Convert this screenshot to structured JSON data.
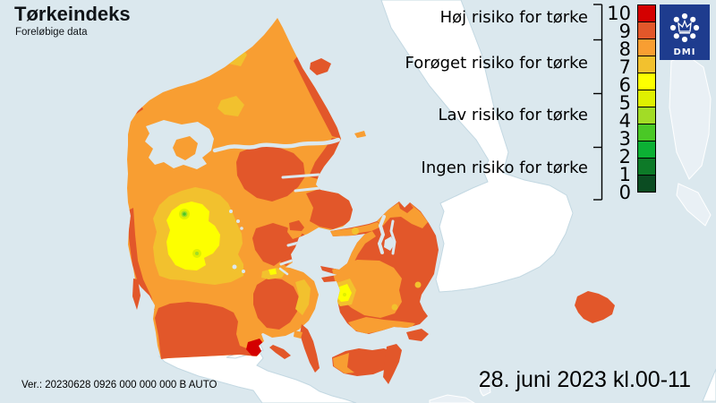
{
  "header": {
    "title": "Tørkeindeks",
    "subtitle": "Foreløbige data"
  },
  "legend": {
    "categories": [
      "Høj risiko for tørke",
      "Forøget risiko for tørke",
      "Lav risiko for tørke",
      "Ingen risiko for tørke"
    ],
    "scale": {
      "ticks": [
        "10",
        "9",
        "8",
        "7",
        "6",
        "5",
        "4",
        "3",
        "2",
        "1",
        "0"
      ],
      "colors": [
        "#d40000",
        "#e2572a",
        "#f89e32",
        "#f2c12e",
        "#fdff00",
        "#dff000",
        "#a2dc26",
        "#4ac826",
        "#0cb034",
        "#0d7a28",
        "#0b4c22"
      ]
    }
  },
  "logo": {
    "label": "DMI"
  },
  "footer": {
    "version": "Ver.: 20230628 0926 000 000 000 B AUTO",
    "datetime": "28. juni 2023 kl.00-11"
  },
  "map": {
    "palette": {
      "sea": "#dbe8ee",
      "neighbor_land": "#ffffff",
      "coastline": "#c3d8e2",
      "faint_land": "#e9f0f5",
      "level10": "#d40000",
      "level9": "#e2572a",
      "level8": "#f89e32",
      "level7": "#f2c12e",
      "level6": "#fdff00",
      "level5": "#dff000",
      "level4": "#a2dc26",
      "level3": "#4ac826",
      "level2": "#0cb034",
      "level1": "#0d7a28",
      "level0": "#0b4c22",
      "logo_bg": "#1e3c8e"
    }
  }
}
